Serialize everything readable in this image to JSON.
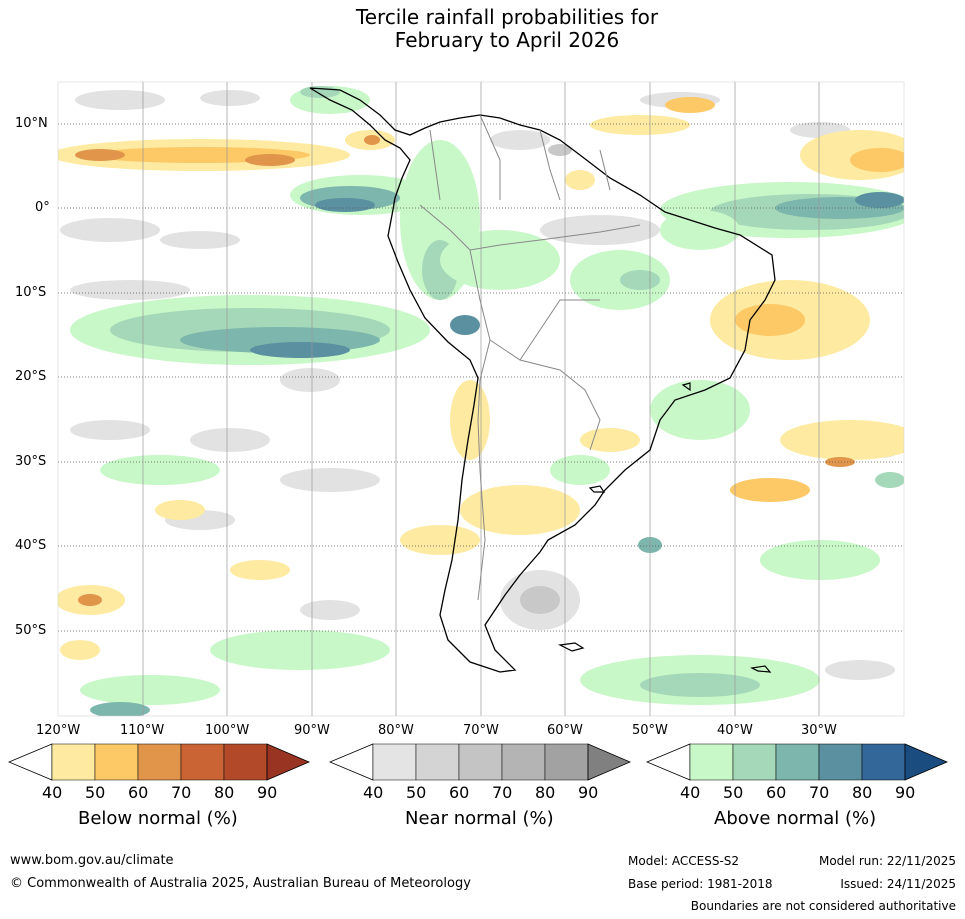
{
  "title": {
    "line1": "Tercile rainfall probabilities for",
    "line2": "February to April 2026"
  },
  "axes": {
    "lat_labels": [
      "10°N",
      "0°",
      "10°S",
      "20°S",
      "30°S",
      "40°S",
      "50°S"
    ],
    "lon_labels": [
      "120°W",
      "110°W",
      "100°W",
      "90°W",
      "80°W",
      "70°W",
      "60°W",
      "50°W",
      "40°W",
      "30°W"
    ]
  },
  "colorbars": [
    {
      "title": "Below normal (%)",
      "ticks": [
        "40",
        "50",
        "60",
        "70",
        "80",
        "90"
      ],
      "colors": [
        "#ffffff",
        "#feeaa0",
        "#fdc866",
        "#e0954a",
        "#cb6434",
        "#b24a2a",
        "#993322"
      ]
    },
    {
      "title": "Near normal (%)",
      "ticks": [
        "40",
        "50",
        "60",
        "70",
        "80",
        "90"
      ],
      "colors": [
        "#ffffff",
        "#e4e4e4",
        "#d4d4d4",
        "#c4c4c4",
        "#b4b4b4",
        "#a2a2a2",
        "#808080"
      ]
    },
    {
      "title": "Above normal (%)",
      "ticks": [
        "40",
        "50",
        "60",
        "70",
        "80",
        "90"
      ],
      "colors": [
        "#ffffff",
        "#c8f7c8",
        "#a4d8b8",
        "#7cb6ac",
        "#5a90a0",
        "#336699",
        "#1a4c80"
      ]
    }
  ],
  "footer": {
    "url": "www.bom.gov.au/climate",
    "copyright": "© Commonwealth of Australia 2025, Australian Bureau of Meteorology",
    "model": "Model: ACCESS-S2",
    "base_period": "Base period: 1981-2018",
    "model_run": "Model run: 22/11/2025",
    "issued": "Issued: 24/11/2025",
    "disclaimer": "Boundaries are not considered authoritative"
  }
}
